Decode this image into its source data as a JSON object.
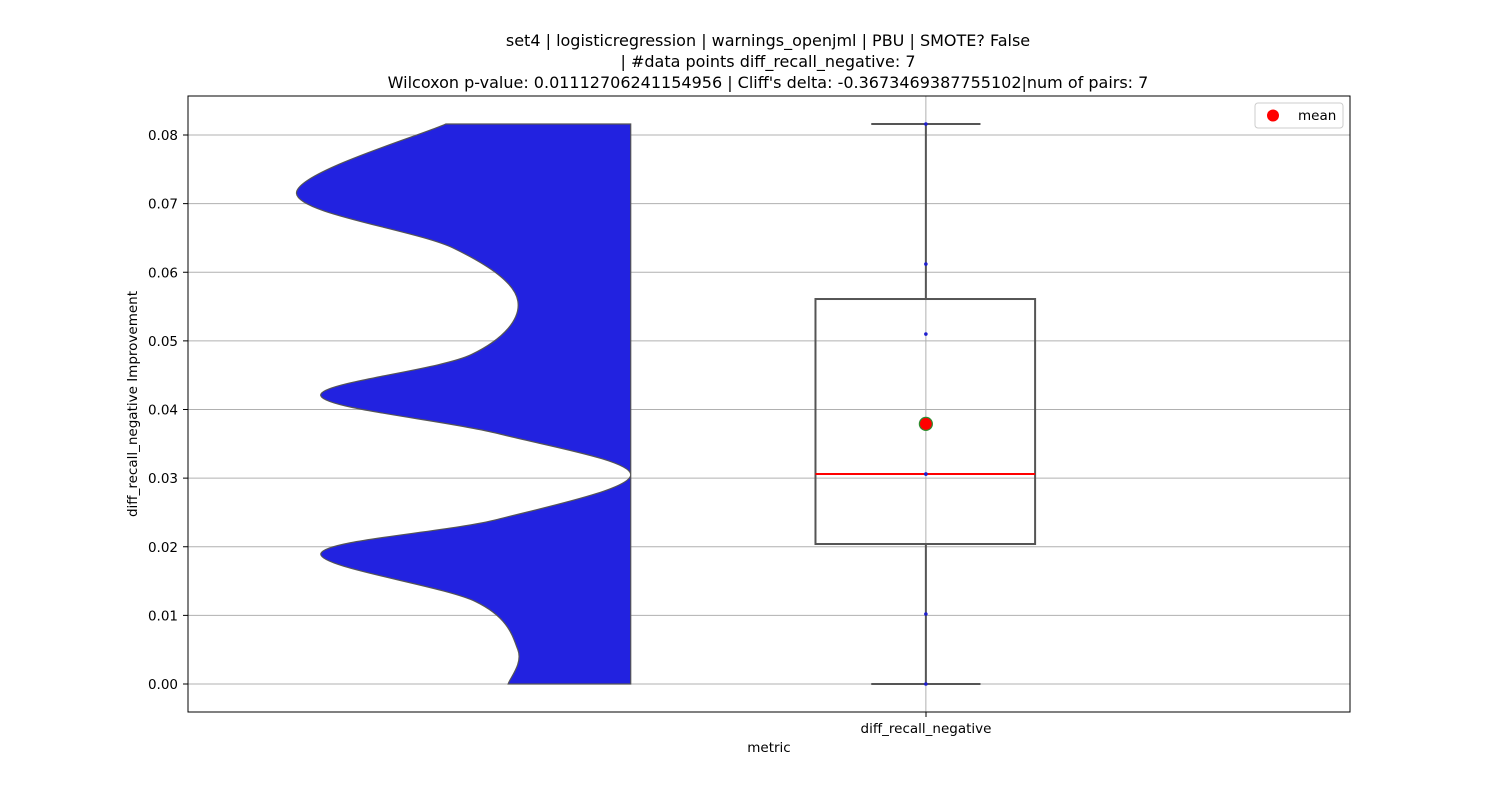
{
  "chart_data": {
    "type": "violin+box",
    "title_lines": [
      "set4 | logisticregression | warnings_openjml | PBU | SMOTE? False",
      "| #data points diff_recall_negative: 7",
      "Wilcoxon p-value: 0.01112706241154956 | Cliff's delta: -0.3673469387755102|num of pairs: 7"
    ],
    "xlabel": "metric",
    "ylabel": "diff_recall_negative Improvement",
    "categories": [
      "diff_recall_negative"
    ],
    "ylim": [
      -0.004,
      0.0855
    ],
    "yticks": [
      "0.00",
      "0.01",
      "0.02",
      "0.03",
      "0.04",
      "0.05",
      "0.06",
      "0.07",
      "0.08"
    ],
    "grid": true,
    "legend": {
      "placement": "top-right",
      "entries": [
        {
          "label": "mean",
          "color": "#ff0000"
        }
      ]
    },
    "colors": {
      "violin_fill": "#2222e0",
      "violin_edge": "#555555",
      "median": "#ff0000",
      "mean_marker": "#ff0000",
      "mean_edge": "#2e8b2e",
      "box_edge": "#555555",
      "points": "#1f1fcf"
    },
    "points": [
      0.0,
      0.0102,
      0.0306,
      0.051,
      0.0612,
      0.0816,
      0.0306
    ],
    "box": {
      "whisker_low": 0.0,
      "q1": 0.0204,
      "median": 0.0306,
      "q3": 0.0561,
      "whisker_high": 0.0816
    },
    "mean": 0.0379,
    "violin_profile": [
      [
        0.0,
        0.723
      ],
      [
        0.005,
        0.745
      ],
      [
        0.012,
        0.65
      ],
      [
        0.019,
        0.3
      ],
      [
        0.024,
        0.7
      ],
      [
        0.0305,
        1.0
      ],
      [
        0.0365,
        0.7
      ],
      [
        0.042,
        0.3
      ],
      [
        0.048,
        0.64
      ],
      [
        0.0558,
        0.745
      ],
      [
        0.0635,
        0.6
      ],
      [
        0.0715,
        0.245
      ],
      [
        0.0816,
        0.582
      ]
    ]
  }
}
